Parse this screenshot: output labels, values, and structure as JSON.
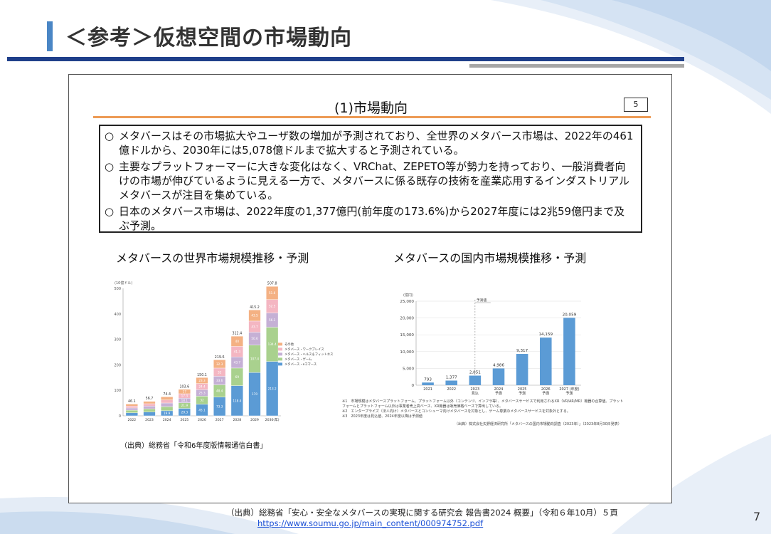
{
  "header": {
    "title": "＜参考＞仮想空間の市場動向"
  },
  "panel": {
    "subtitle": "(1)市場動向",
    "page_badge": "5",
    "bullets": [
      {
        "mark": "○",
        "text": "メタバースはその市場拡大やユーザ数の増加が予測されており、全世界のメタバース市場は、2022年の461億ドルから、2030年には5,078億ドルまで拡大すると予測されている。"
      },
      {
        "mark": "○",
        "text": "主要なプラットフォーマーに大きな変化はなく、VRChat、ZEPETO等が勢力を持っており、一般消費者向けの市場が伸びているように見える一方で、メタバースに係る既存の技術を産業応用するインダストリアルメタバースが注目を集めている。"
      },
      {
        "mark": "○",
        "text": "日本のメタバース市場は、2022年度の1,377億円(前年度の173.6%)から2027年度には2兆59億円まで及ぶ予測。"
      }
    ],
    "left_title": "メタバースの世界市場規模推移・予測",
    "right_title": "メタバースの国内市場規模推移・予測",
    "left_source": "（出典）総務省「令和6年度版情報通信白書」",
    "notes": [
      "※1　市場規模はメタバースプラットフォーム、プラットフォーム以外（コンテンツ、インフラ等）、メタバースサービスで利用されるXR（VR/AR/MR）機器の合算値。プラットフォームとプラットフォーム以外は事業者売上高ベース、XR機器は販売価格ベースで算出している。",
      "※2　エンタープライズ（法人向け）メタバースとコンシューマ向けメタバースを対象とし、ゲーム専業のメタバースサービスを対象外とする。",
      "※3　2023年度は見込値、2024年度以降は予測値"
    ],
    "note_source": "（出典）株式会社矢野経済研究所「メタバースの国内市場動向調査（2023年）」（2023年8月30日発表）"
  },
  "footer": {
    "source": "（出典）総務省「安心・安全なメタバースの実現に関する研究会 報告書2024 概要」（令和６年10月）５頁",
    "url": "https://www.soumu.go.jp/main_content/000974752.pdf",
    "page_number": "7"
  },
  "colors": {
    "accent_blue": "#4a86c5",
    "navy_rule": "#1f3f8a",
    "orange_rule": "#ed9b55",
    "bar_blue": "#5b9bd5",
    "s_ec": "#5b9bd5",
    "s_game": "#a9d18e",
    "s_health": "#c5b0d5",
    "s_work": "#f4b6c2",
    "s_other": "#f4b183"
  },
  "chart_data": [
    {
      "type": "bar",
      "stacked": true,
      "unit_label": "(10億ドル)",
      "categories": [
        "2022",
        "2023",
        "2024",
        "2025",
        "2026",
        "2027",
        "2028",
        "2029",
        "2030(年)"
      ],
      "totals": [
        46.1,
        56.7,
        74.4,
        103.6,
        150.1,
        219.6,
        312.4,
        415.2,
        507.8
      ],
      "ylim": [
        0,
        500
      ],
      "yticks": [
        0,
        100,
        200,
        300,
        400,
        500
      ],
      "legend_position": "right",
      "legend_order": [
        "その他",
        "メタバース・ワークプレイス",
        "メタバース・ヘルス＆フィットネス",
        "メタバース・ゲーム",
        "メタバース・eコマース"
      ],
      "series": [
        {
          "name": "メタバース・eコマース",
          "color": "#5b9bd5",
          "values": [
            11.7,
            14.6,
            19.9,
            29.3,
            45.1,
            73.3,
            118.4,
            170.0,
            213.2
          ]
        },
        {
          "name": "メタバース・ゲーム",
          "color": "#a9d18e",
          "values": [
            10.5,
            12.9,
            16.2,
            21.9,
            32.0,
            48.4,
            69.0,
            107.4,
            134.4
          ]
        },
        {
          "name": "メタバース・ヘルス＆フィットネス",
          "color": "#c5b0d5",
          "values": [
            8.6,
            10.6,
            14.2,
            18.1,
            25.3,
            33.6,
            43.7,
            50.6,
            56.1
          ]
        },
        {
          "name": "メタバース・ワークプレイス",
          "color": "#f4b6c2",
          "values": [
            7.7,
            9.4,
            12.1,
            17.3,
            24.4,
            32.0,
            41.3,
            43.7,
            52.5
          ]
        },
        {
          "name": "その他",
          "color": "#f4b183",
          "values": [
            7.6,
            9.2,
            12.0,
            17.0,
            23.3,
            32.3,
            40.0,
            43.5,
            51.6
          ]
        }
      ]
    },
    {
      "type": "bar",
      "unit_label": "(億円)",
      "forecast_label": "予測値",
      "categories": [
        [
          "2021"
        ],
        [
          "2022"
        ],
        [
          "2023",
          "見込"
        ],
        [
          "2024",
          "予測"
        ],
        [
          "2025",
          "予測"
        ],
        [
          "2026",
          "予測"
        ],
        [
          "2027 (年度)",
          "予測"
        ]
      ],
      "values": [
        793,
        1377,
        2851,
        4986,
        9317,
        14159,
        20059
      ],
      "value_labels": [
        "793",
        "1,377",
        "2,851",
        "4,986",
        "9,317",
        "14,159",
        "20,059"
      ],
      "ylim": [
        0,
        25000
      ],
      "yticks": [
        0,
        5000,
        10000,
        15000,
        20000,
        25000
      ],
      "ytick_labels": [
        "0",
        "5,000",
        "10,000",
        "15,000",
        "20,000",
        "25,000"
      ],
      "color": "#5b9bd5"
    }
  ]
}
